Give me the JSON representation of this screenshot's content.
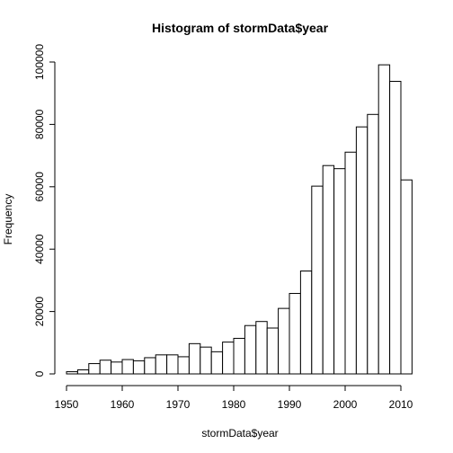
{
  "chart_data": {
    "type": "bar",
    "title": "Histogram of stormData$year",
    "xlabel": "stormData$year",
    "ylabel": "Frequency",
    "bin_width": 2,
    "bins": [
      {
        "from": 1950,
        "to": 1952,
        "value": 700
      },
      {
        "from": 1952,
        "to": 1954,
        "value": 1300
      },
      {
        "from": 1954,
        "to": 1956,
        "value": 3300
      },
      {
        "from": 1956,
        "to": 1958,
        "value": 4400
      },
      {
        "from": 1958,
        "to": 1960,
        "value": 3800
      },
      {
        "from": 1960,
        "to": 1962,
        "value": 4600
      },
      {
        "from": 1962,
        "to": 1964,
        "value": 4200
      },
      {
        "from": 1964,
        "to": 1966,
        "value": 5200
      },
      {
        "from": 1966,
        "to": 1968,
        "value": 6100
      },
      {
        "from": 1968,
        "to": 1970,
        "value": 6100
      },
      {
        "from": 1970,
        "to": 1972,
        "value": 5500
      },
      {
        "from": 1972,
        "to": 1974,
        "value": 9700
      },
      {
        "from": 1974,
        "to": 1976,
        "value": 8600
      },
      {
        "from": 1976,
        "to": 1978,
        "value": 7100
      },
      {
        "from": 1978,
        "to": 1980,
        "value": 10200
      },
      {
        "from": 1980,
        "to": 1982,
        "value": 11400
      },
      {
        "from": 1982,
        "to": 1984,
        "value": 15500
      },
      {
        "from": 1984,
        "to": 1986,
        "value": 16800
      },
      {
        "from": 1986,
        "to": 1988,
        "value": 14700
      },
      {
        "from": 1988,
        "to": 1990,
        "value": 21000
      },
      {
        "from": 1990,
        "to": 1992,
        "value": 25800
      },
      {
        "from": 1992,
        "to": 1994,
        "value": 33000
      },
      {
        "from": 1994,
        "to": 1996,
        "value": 60200
      },
      {
        "from": 1996,
        "to": 1998,
        "value": 66800
      },
      {
        "from": 1998,
        "to": 2000,
        "value": 65800
      },
      {
        "from": 2000,
        "to": 2002,
        "value": 71100
      },
      {
        "from": 2002,
        "to": 2004,
        "value": 79200
      },
      {
        "from": 2004,
        "to": 2006,
        "value": 83200
      },
      {
        "from": 2006,
        "to": 2008,
        "value": 99100
      },
      {
        "from": 2008,
        "to": 2010,
        "value": 93800
      },
      {
        "from": 2010,
        "to": 2012,
        "value": 62200
      }
    ],
    "x_ticks": [
      1950,
      1960,
      1970,
      1980,
      1990,
      2000,
      2010
    ],
    "y_ticks": [
      0,
      20000,
      40000,
      60000,
      80000,
      100000
    ],
    "xlim": [
      1950,
      2012
    ],
    "ylim": [
      0,
      100000
    ],
    "bar_fill": "#ffffff",
    "bar_stroke": "#000000",
    "grid": false,
    "legend": "none"
  }
}
